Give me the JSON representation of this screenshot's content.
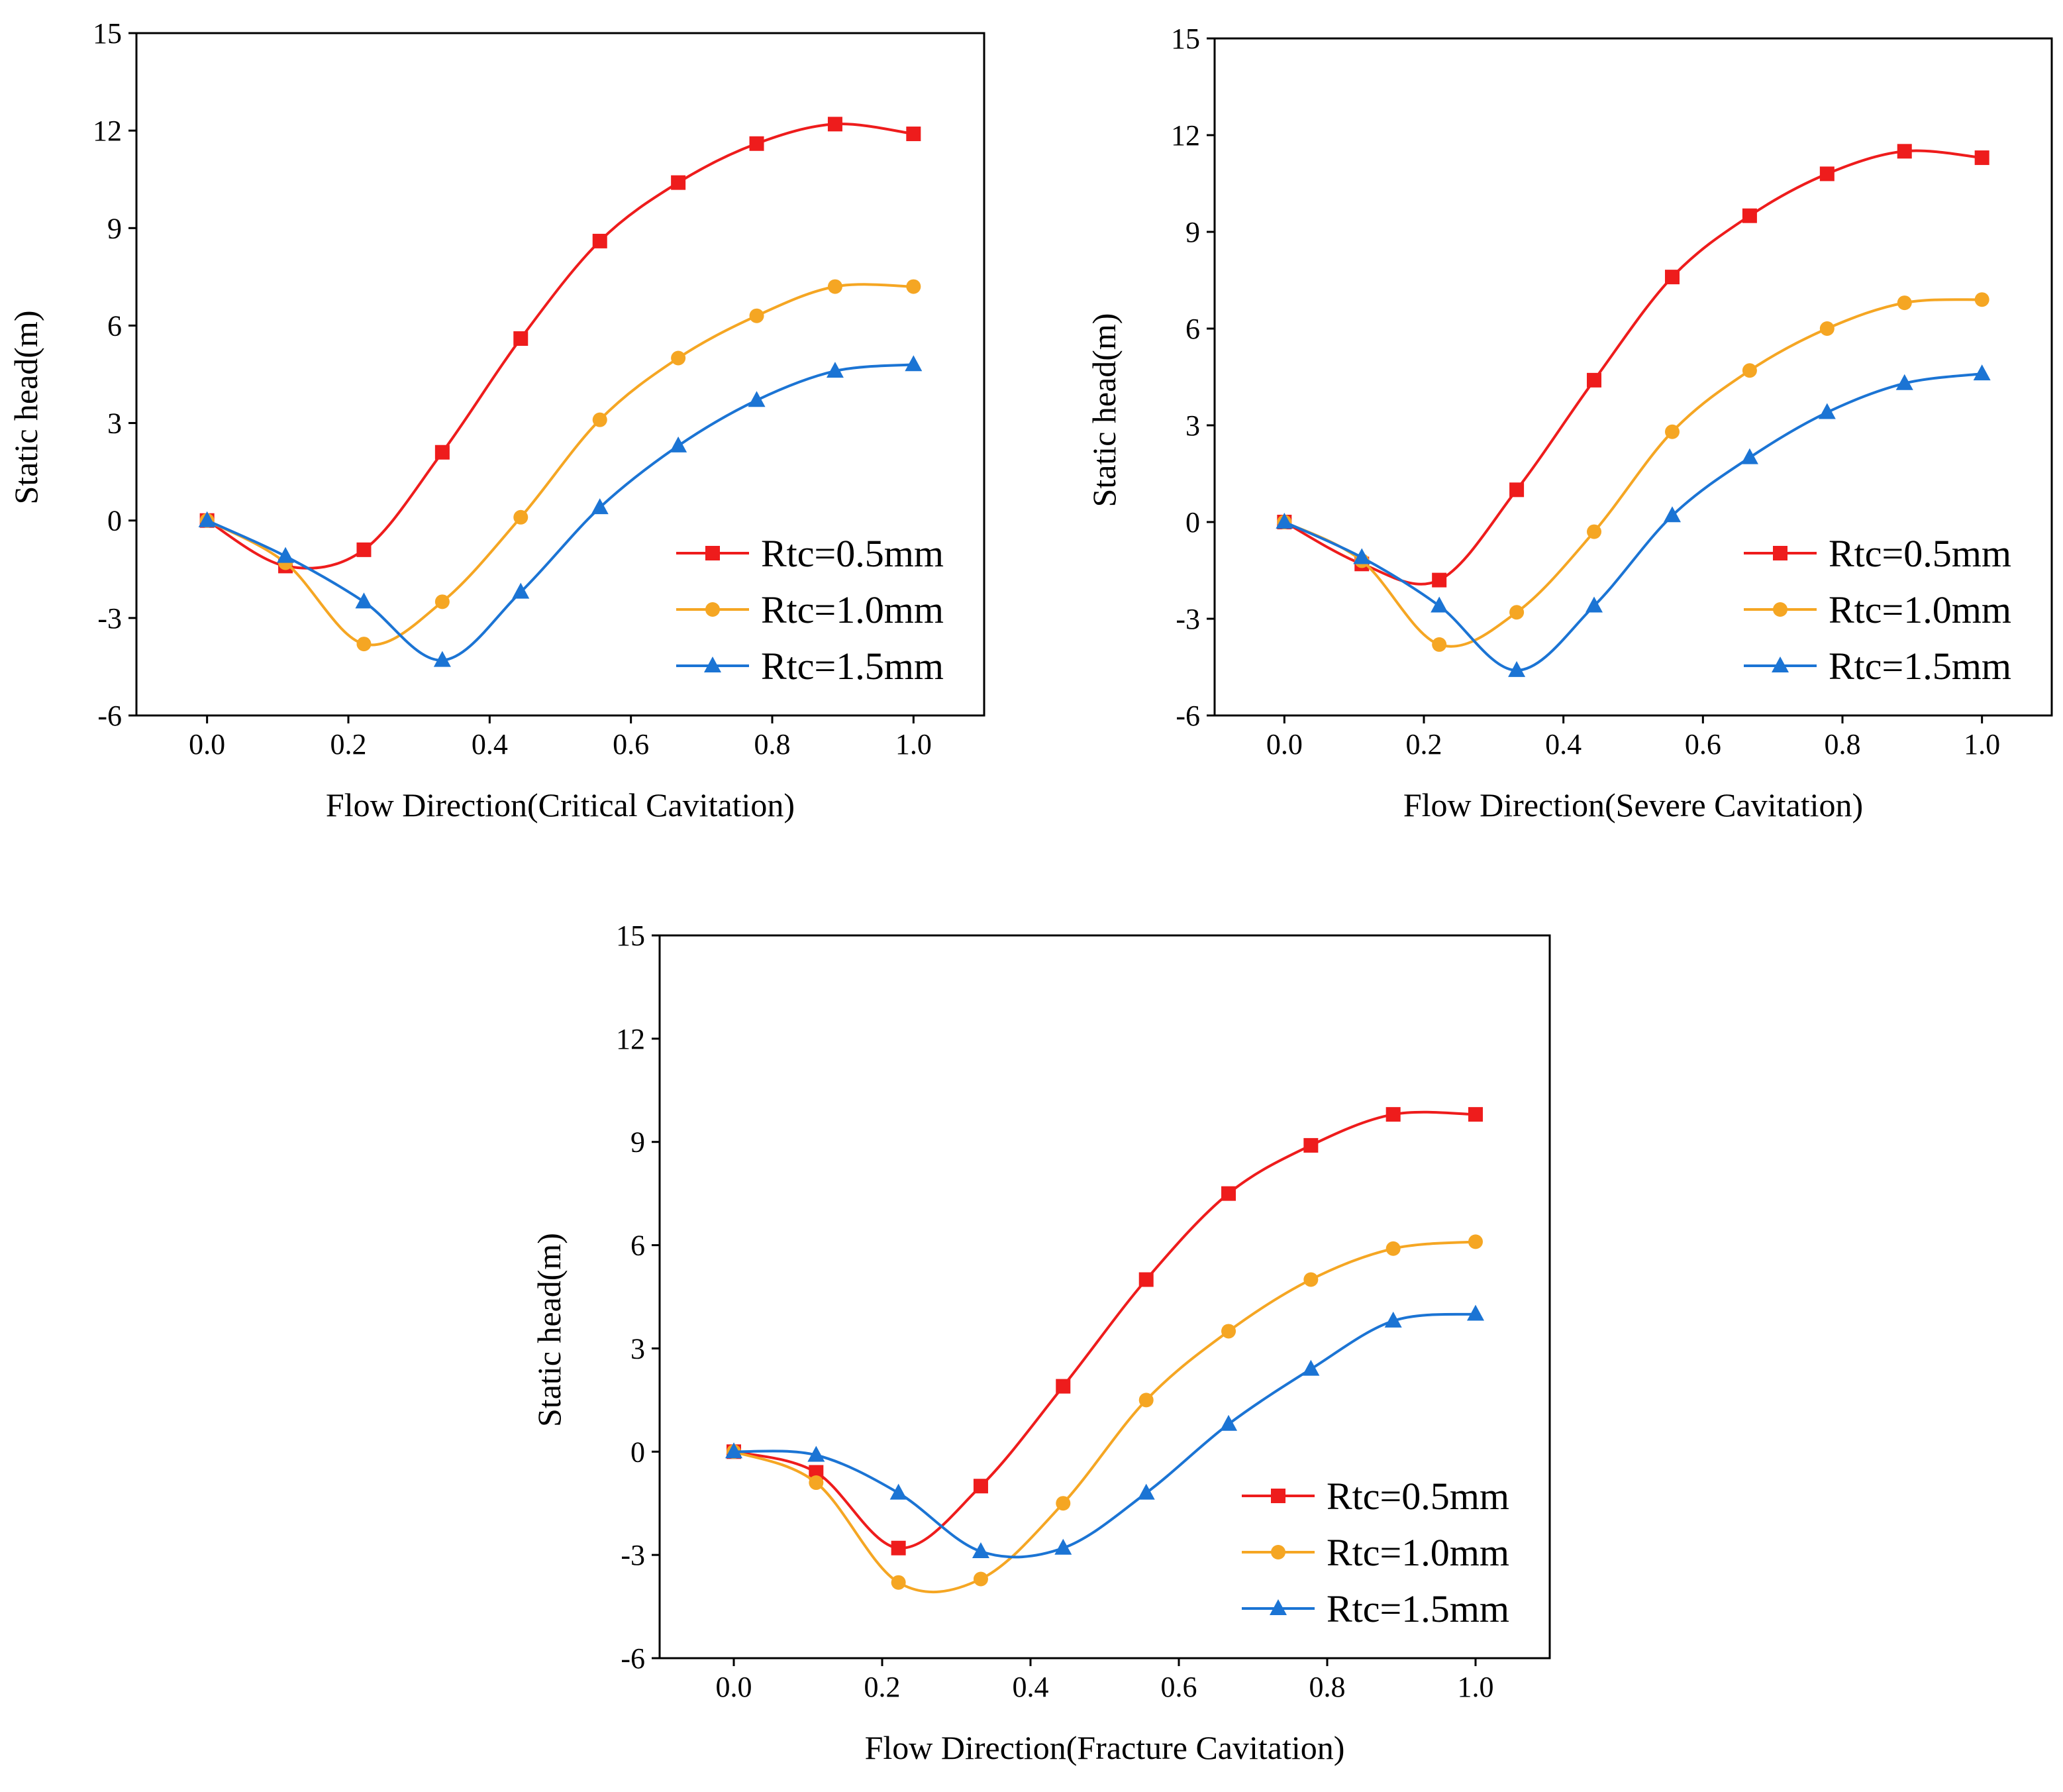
{
  "colors": {
    "red": "#ee1c1c",
    "orange": "#f5a623",
    "blue": "#1b74d4"
  },
  "chart_data": [
    {
      "type": "line",
      "xlabel": "Flow Direction(Critical Cavitation)",
      "ylabel": "Static head(m)",
      "xlim": [
        -0.1,
        1.1
      ],
      "ylim": [
        -6,
        15
      ],
      "xticks": [
        "0.0",
        "0.2",
        "0.4",
        "0.6",
        "0.8",
        "1.0"
      ],
      "yticks": [
        "-6",
        "-3",
        "0",
        "3",
        "6",
        "9",
        "12",
        "15"
      ],
      "legend_position": "lower-right",
      "x": [
        0,
        0.111,
        0.222,
        0.333,
        0.444,
        0.556,
        0.667,
        0.778,
        0.889,
        1.0
      ],
      "series": [
        {
          "name": "Rtc=0.5mm",
          "color": "#ee1c1c",
          "marker": "square",
          "values": [
            0,
            -1.4,
            -0.9,
            2.1,
            5.6,
            8.6,
            10.4,
            11.6,
            12.2,
            11.9
          ]
        },
        {
          "name": "Rtc=1.0mm",
          "color": "#f5a623",
          "marker": "circle",
          "values": [
            0,
            -1.3,
            -3.8,
            -2.5,
            0.1,
            3.1,
            5.0,
            6.3,
            7.2,
            7.2
          ]
        },
        {
          "name": "Rtc=1.5mm",
          "color": "#1b74d4",
          "marker": "triangle",
          "values": [
            0,
            -1.1,
            -2.5,
            -4.3,
            -2.2,
            0.4,
            2.3,
            3.7,
            4.6,
            4.8
          ]
        }
      ]
    },
    {
      "type": "line",
      "xlabel": "Flow Direction(Severe Cavitation)",
      "ylabel": "Static head(m)",
      "xlim": [
        -0.1,
        1.1
      ],
      "ylim": [
        -6,
        15
      ],
      "xticks": [
        "0.0",
        "0.2",
        "0.4",
        "0.6",
        "0.8",
        "1.0"
      ],
      "yticks": [
        "-6",
        "-3",
        "0",
        "3",
        "6",
        "9",
        "12",
        "15"
      ],
      "legend_position": "lower-right",
      "x": [
        0,
        0.111,
        0.222,
        0.333,
        0.444,
        0.556,
        0.667,
        0.778,
        0.889,
        1.0
      ],
      "series": [
        {
          "name": "Rtc=0.5mm",
          "color": "#ee1c1c",
          "marker": "square",
          "values": [
            0,
            -1.3,
            -1.8,
            1.0,
            4.4,
            7.6,
            9.5,
            10.8,
            11.5,
            11.3
          ]
        },
        {
          "name": "Rtc=1.0mm",
          "color": "#f5a623",
          "marker": "circle",
          "values": [
            0,
            -1.2,
            -3.8,
            -2.8,
            -0.3,
            2.8,
            4.7,
            6.0,
            6.8,
            6.9
          ]
        },
        {
          "name": "Rtc=1.5mm",
          "color": "#1b74d4",
          "marker": "triangle",
          "values": [
            0,
            -1.1,
            -2.6,
            -4.6,
            -2.6,
            0.2,
            2.0,
            3.4,
            4.3,
            4.6
          ]
        }
      ]
    },
    {
      "type": "line",
      "xlabel": "Flow Direction(Fracture Cavitation)",
      "ylabel": "Static head(m)",
      "xlim": [
        -0.1,
        1.1
      ],
      "ylim": [
        -6,
        15
      ],
      "xticks": [
        "0.0",
        "0.2",
        "0.4",
        "0.6",
        "0.8",
        "1.0"
      ],
      "yticks": [
        "-6",
        "-3",
        "0",
        "3",
        "6",
        "9",
        "12",
        "15"
      ],
      "legend_position": "lower-right",
      "x": [
        0,
        0.111,
        0.222,
        0.333,
        0.444,
        0.556,
        0.667,
        0.778,
        0.889,
        1.0
      ],
      "series": [
        {
          "name": "Rtc=0.5mm",
          "color": "#ee1c1c",
          "marker": "square",
          "values": [
            0,
            -0.6,
            -2.8,
            -1.0,
            1.9,
            5.0,
            7.5,
            8.9,
            9.8,
            9.8
          ]
        },
        {
          "name": "Rtc=1.0mm",
          "color": "#f5a623",
          "marker": "circle",
          "values": [
            0,
            -0.9,
            -3.8,
            -3.7,
            -1.5,
            1.5,
            3.5,
            5.0,
            5.9,
            6.1
          ]
        },
        {
          "name": "Rtc=1.5mm",
          "color": "#1b74d4",
          "marker": "triangle",
          "values": [
            0,
            -0.1,
            -1.2,
            -2.9,
            -2.8,
            -1.2,
            0.8,
            2.4,
            3.8,
            4.0
          ]
        }
      ]
    }
  ]
}
